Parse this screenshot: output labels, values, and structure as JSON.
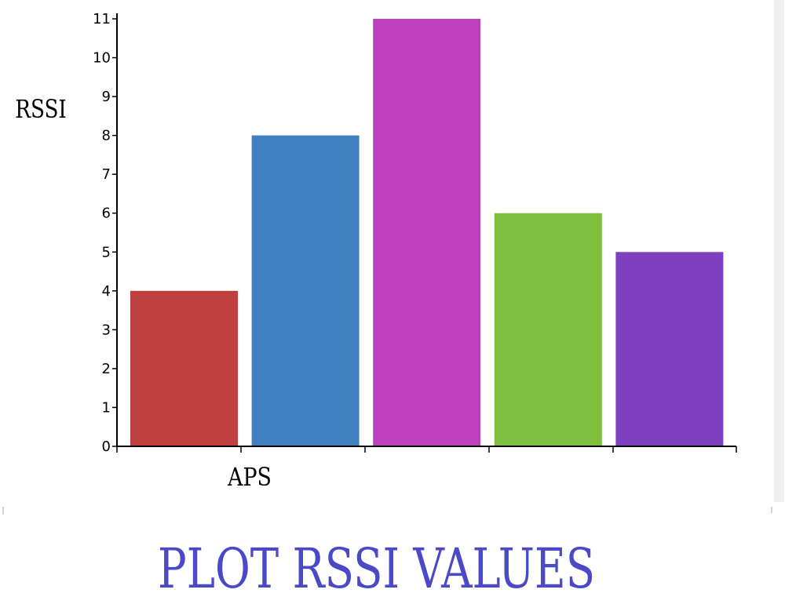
{
  "chart_data": {
    "type": "bar",
    "title": "PLOT RSSI VALUES",
    "xlabel": "APS",
    "ylabel": "RSSI",
    "ylim": [
      0,
      11
    ],
    "yticks": [
      "0",
      "1",
      "2",
      "3",
      "4",
      "5",
      "6",
      "7",
      "8",
      "9",
      "10",
      "11"
    ],
    "grid": false,
    "legend": "none",
    "categories": [
      "",
      "",
      "",
      "",
      ""
    ],
    "values": [
      4,
      8,
      11,
      6,
      5
    ],
    "colors": [
      "#bd403e",
      "#3f7fbf",
      "#bf40bf",
      "#7fbf40",
      "#7f40bf"
    ]
  },
  "colors": {
    "title": "#4a4ac8",
    "axis": "#000000"
  }
}
